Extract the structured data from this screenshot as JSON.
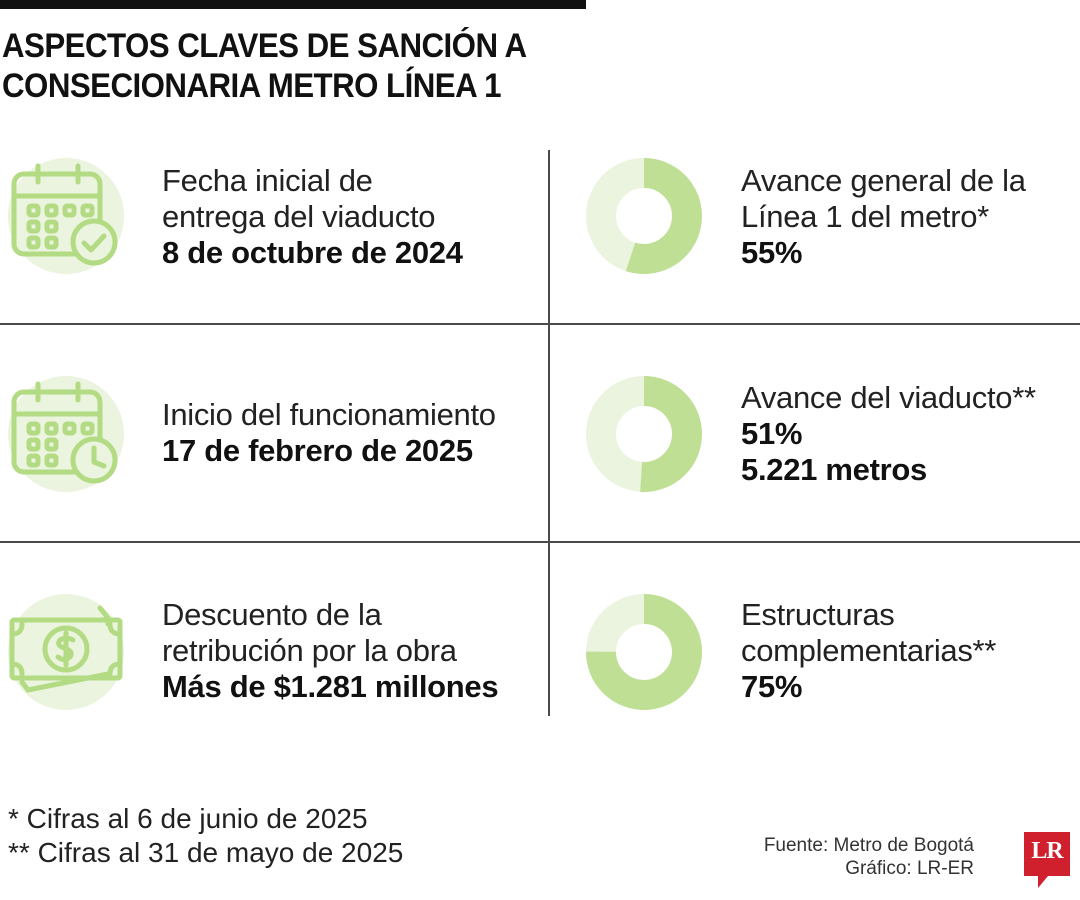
{
  "title": [
    "ASPECTOS CLAVES DE SANCIÓN A",
    "CONSECIONARIA METRO LÍNEA 1"
  ],
  "colors": {
    "accent": "#bfe094",
    "track": "#ebf4de",
    "icon_stroke": "#b3db84",
    "icon_bg": "#ebf4de",
    "logo": "#d0202e"
  },
  "items": [
    {
      "icon": "calendar-check-icon",
      "lines": [
        "Fecha inicial de",
        "entrega del viaducto"
      ],
      "value": "8 de octubre de 2024"
    },
    {
      "icon": "calendar-clock-icon",
      "lines": [
        "Inicio del funcionamiento"
      ],
      "value": "17 de febrero de 2025"
    },
    {
      "icon": "money-bill-icon",
      "lines": [
        "Descuento de la",
        "retribución por la obra"
      ],
      "value": "Más de $1.281 millones"
    }
  ],
  "chart_data": {
    "type": "pie",
    "variant": "donut",
    "series": [
      {
        "name": "Avance general de la Línea 1 del metro*",
        "label_lines": [
          "Avance general de la",
          "Línea 1 del metro*"
        ],
        "value": 55,
        "value_label": "55%",
        "extra": ""
      },
      {
        "name": "Avance del viaducto**",
        "label_lines": [
          "Avance del viaducto**"
        ],
        "value": 51,
        "value_label": "51%",
        "extra": "5.221 metros"
      },
      {
        "name": "Estructuras complementarias**",
        "label_lines": [
          "Estructuras",
          "complementarias**"
        ],
        "value": 75,
        "value_label": "75%",
        "extra": ""
      }
    ]
  },
  "footnotes": [
    "* Cifras al 6 de junio de 2025",
    "** Cifras al 31 de mayo de 2025"
  ],
  "credits": [
    "Fuente: Metro de Bogotá",
    "Gráfico: LR-ER"
  ],
  "logo_text": "LR"
}
